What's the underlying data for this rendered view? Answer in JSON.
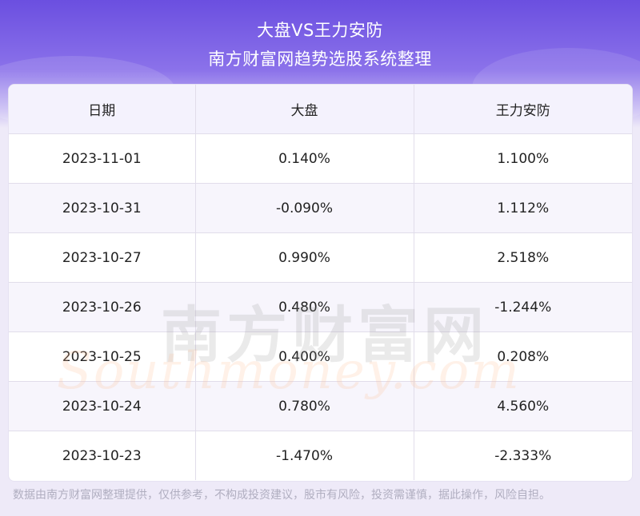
{
  "header": {
    "title": "大盘VS王力安防",
    "subtitle": "南方财富网趋势选股系统整理"
  },
  "table": {
    "columns": [
      "日期",
      "大盘",
      "王力安防"
    ],
    "rows": [
      [
        "2023-11-01",
        "0.140%",
        "1.100%"
      ],
      [
        "2023-10-31",
        "-0.090%",
        "1.112%"
      ],
      [
        "2023-10-27",
        "0.990%",
        "2.518%"
      ],
      [
        "2023-10-26",
        "0.480%",
        "-1.244%"
      ],
      [
        "2023-10-25",
        "0.400%",
        "0.208%"
      ],
      [
        "2023-10-24",
        "0.780%",
        "4.560%"
      ],
      [
        "2023-10-23",
        "-1.470%",
        "-2.333%"
      ]
    ]
  },
  "watermark": {
    "cn": "南方财富网",
    "en": "Southmoney.com"
  },
  "footer": {
    "disclaimer": "数据由南方财富网整理提供，仅供参考，不构成投资建议，股市有风险，投资需谨慎，据此操作，风险自担。"
  },
  "colors": {
    "header_top": "#6b4fe0",
    "header_bottom": "#eeeaf8",
    "table_header_bg": "#f4f2fd",
    "text": "#222222",
    "footer_text": "#b0aec0"
  }
}
